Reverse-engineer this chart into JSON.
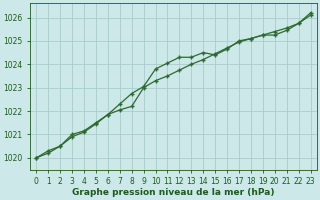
{
  "line1_x": [
    0,
    1,
    2,
    3,
    4,
    5,
    6,
    7,
    8,
    9,
    10,
    11,
    12,
    13,
    14,
    15,
    16,
    17,
    18,
    19,
    20,
    21,
    22,
    23
  ],
  "line1_y": [
    1020.0,
    1020.2,
    1020.5,
    1020.9,
    1021.1,
    1021.45,
    1021.85,
    1022.3,
    1022.75,
    1023.05,
    1023.8,
    1024.05,
    1024.3,
    1024.3,
    1024.5,
    1024.4,
    1024.65,
    1025.0,
    1025.1,
    1025.25,
    1025.25,
    1025.45,
    1025.75,
    1026.2
  ],
  "line2_x": [
    0,
    1,
    2,
    3,
    4,
    5,
    6,
    7,
    8,
    9,
    10,
    11,
    12,
    13,
    14,
    15,
    16,
    17,
    18,
    19,
    20,
    21,
    22,
    23
  ],
  "line2_y": [
    1020.0,
    1020.3,
    1020.5,
    1021.0,
    1021.15,
    1021.5,
    1021.85,
    1022.05,
    1022.2,
    1023.0,
    1023.3,
    1023.5,
    1023.75,
    1024.0,
    1024.2,
    1024.45,
    1024.7,
    1024.95,
    1025.1,
    1025.25,
    1025.4,
    1025.55,
    1025.75,
    1026.1
  ],
  "line_color": "#2d6a2d",
  "marker": "+",
  "background_color": "#cce8e8",
  "grid_color": "#b8d8d8",
  "xlabel": "Graphe pression niveau de la mer (hPa)",
  "xlabel_color": "#1a5c1a",
  "tick_color": "#1a5c1a",
  "ylim": [
    1019.5,
    1026.6
  ],
  "xlim": [
    -0.5,
    23.5
  ],
  "yticks": [
    1020,
    1021,
    1022,
    1023,
    1024,
    1025,
    1026
  ],
  "xticks": [
    0,
    1,
    2,
    3,
    4,
    5,
    6,
    7,
    8,
    9,
    10,
    11,
    12,
    13,
    14,
    15,
    16,
    17,
    18,
    19,
    20,
    21,
    22,
    23
  ],
  "xlabel_fontsize": 6.5,
  "tick_fontsize": 5.5
}
